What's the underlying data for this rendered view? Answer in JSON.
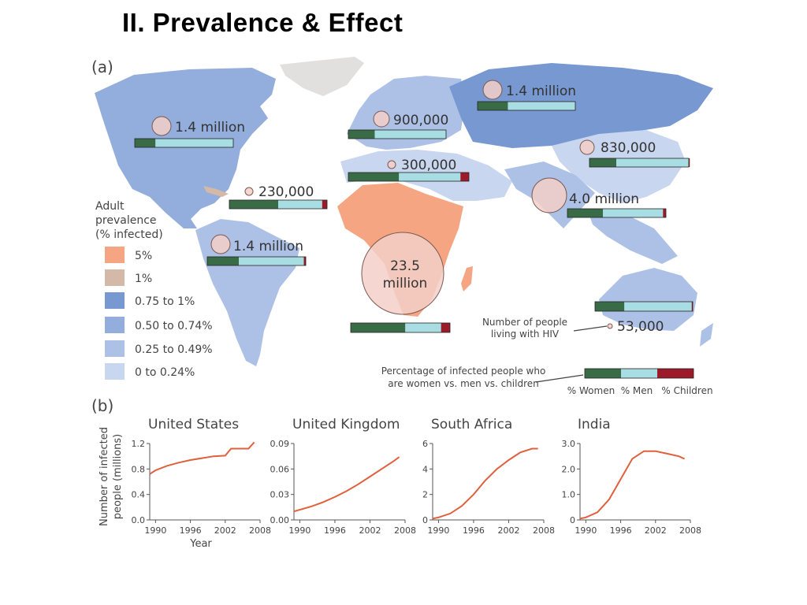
{
  "title": "II. Prevalence & Effect",
  "part_a_label": "(a)",
  "part_b_label": "(b)",
  "legend": {
    "title_lines": [
      "Adult",
      "prevalence",
      "(% infected)"
    ],
    "items": [
      {
        "label": "5%",
        "color": "#f6a582"
      },
      {
        "label": "1%",
        "color": "#d4b8a8"
      },
      {
        "label": "0.75 to 1%",
        "color": "#7898d2"
      },
      {
        "label": "0.50 to 0.74%",
        "color": "#93aedc"
      },
      {
        "label": "0.25 to 0.49%",
        "color": "#adc1e6"
      },
      {
        "label": "0 to 0.24%",
        "color": "#c9d6ef"
      }
    ]
  },
  "regions": [
    {
      "label": "1.4 million",
      "count": 1.4,
      "women": 0.21,
      "men": 0.79,
      "children": 0.0
    },
    {
      "label": "900,000",
      "count": 0.9,
      "women": 0.27,
      "men": 0.73,
      "children": 0.0
    },
    {
      "label": "1.4 million",
      "count": 1.4,
      "women": 0.31,
      "men": 0.69,
      "children": 0.0
    },
    {
      "label": "830,000",
      "count": 0.83,
      "women": 0.27,
      "men": 0.73,
      "children": 0.01
    },
    {
      "label": "300,000",
      "count": 0.3,
      "women": 0.42,
      "men": 0.51,
      "children": 0.07
    },
    {
      "label": "230,000",
      "count": 0.23,
      "women": 0.5,
      "men": 0.45,
      "children": 0.05
    },
    {
      "label": "4.0 million",
      "count": 4.0,
      "women": 0.36,
      "men": 0.61,
      "children": 0.03
    },
    {
      "label": "1.4 million",
      "count": 1.4,
      "women": 0.32,
      "men": 0.66,
      "children": 0.02
    },
    {
      "label": "23.5 million",
      "count": 23.5,
      "women": 0.55,
      "men": 0.36,
      "children": 0.09
    },
    {
      "label": "53,000",
      "count": 0.053,
      "women": 0.3,
      "men": 0.69,
      "children": 0.01
    }
  ],
  "annotations": {
    "circle_note_lines": [
      "Number of people",
      "living with HIV"
    ],
    "bar_note_lines": [
      "Percentage of infected people who",
      "are women vs. men vs. children"
    ],
    "bar_key": [
      "% Women",
      "% Men",
      "% Children"
    ]
  },
  "colors": {
    "women": "#3a6b47",
    "men": "#a8dde3",
    "children": "#9b1b2a",
    "bubble": "#f3cfc8",
    "curve": "#e0603c"
  },
  "chart_data": [
    {
      "type": "line",
      "title": "United States",
      "ylabel": "Number of infected people (millions)",
      "xlabel": "Year",
      "x": [
        1989,
        1990,
        1992,
        1994,
        1996,
        1998,
        2000,
        2002,
        2003,
        2004,
        2006,
        2007
      ],
      "values": [
        0.72,
        0.78,
        0.85,
        0.9,
        0.94,
        0.97,
        1.0,
        1.01,
        1.12,
        1.12,
        1.12,
        1.22
      ],
      "xticks": [
        "1990",
        "1996",
        "2002",
        "2008"
      ],
      "yticks": [
        "0.0",
        "0.4",
        "0.8",
        "1.2"
      ],
      "xlim": [
        1989,
        2008
      ],
      "ylim": [
        0,
        1.2
      ]
    },
    {
      "type": "line",
      "title": "United Kingdom",
      "ylabel": "",
      "xlabel": "",
      "x": [
        1989,
        1990,
        1992,
        1994,
        1996,
        1998,
        2000,
        2002,
        2004,
        2006,
        2007
      ],
      "values": [
        0.01,
        0.012,
        0.016,
        0.021,
        0.027,
        0.034,
        0.042,
        0.051,
        0.06,
        0.069,
        0.074
      ],
      "xticks": [
        "1990",
        "1996",
        "2002",
        "2008"
      ],
      "yticks": [
        "0.00",
        "0.03",
        "0.06",
        "0.09"
      ],
      "xlim": [
        1989,
        2008
      ],
      "ylim": [
        0,
        0.09
      ]
    },
    {
      "type": "line",
      "title": "South Africa",
      "ylabel": "",
      "xlabel": "",
      "x": [
        1989,
        1990,
        1992,
        1994,
        1996,
        1998,
        2000,
        2002,
        2004,
        2006,
        2007
      ],
      "values": [
        0.1,
        0.2,
        0.5,
        1.1,
        2.0,
        3.1,
        4.0,
        4.7,
        5.3,
        5.6,
        5.6
      ],
      "xticks": [
        "1990",
        "1996",
        "2002",
        "2008"
      ],
      "yticks": [
        "0",
        "2",
        "4",
        "6"
      ],
      "xlim": [
        1989,
        2008
      ],
      "ylim": [
        0,
        6
      ]
    },
    {
      "type": "line",
      "title": "India",
      "ylabel": "",
      "xlabel": "",
      "x": [
        1989,
        1990,
        1992,
        1994,
        1996,
        1998,
        2000,
        2002,
        2004,
        2006,
        2007
      ],
      "values": [
        0.05,
        0.1,
        0.3,
        0.8,
        1.6,
        2.4,
        2.7,
        2.7,
        2.6,
        2.5,
        2.4
      ],
      "xticks": [
        "1990",
        "1996",
        "2002",
        "2008"
      ],
      "yticks": [
        "0",
        "1.0",
        "2.0",
        "3.0"
      ],
      "xlim": [
        1989,
        2008
      ],
      "ylim": [
        0,
        3.0
      ]
    }
  ]
}
